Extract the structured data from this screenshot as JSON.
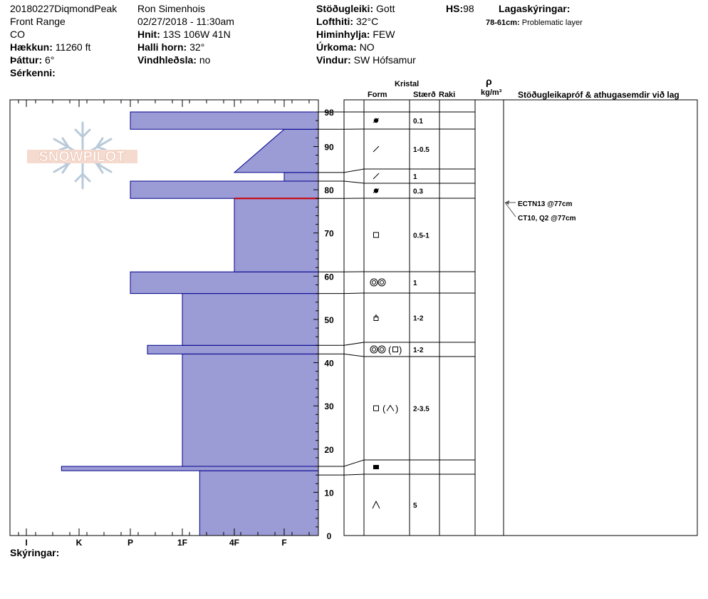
{
  "header": {
    "col1": {
      "site": "20180227DiqmondPeak",
      "range": "Front Range",
      "state": "CO",
      "elevation_label": "Hækkun:",
      "elevation": "11260 ft",
      "aspect_label": "Þáttur:",
      "aspect": "6°",
      "features_label": "Sérkenni:"
    },
    "col2": {
      "observer": "Ron Simenhois",
      "datetime": "02/27/2018 - 11:30am",
      "coords_label": "Hnit:",
      "coords": "13S 106W 41N",
      "slope_label": "Halli horn:",
      "slope": "32°",
      "wind_loading_label": "Vindhleðsla:",
      "wind_loading": "no"
    },
    "col3": {
      "stability_label": "Stöðugleiki:",
      "stability": "Gott",
      "air_temp_label": "Lofthiti:",
      "air_temp": "32°C",
      "sky_label": "Himinhylja:",
      "sky": "FEW",
      "precip_label": "Úrkoma:",
      "precip": "NO",
      "wind_label": "Vindur:",
      "wind": "SW Hófsamur"
    },
    "hs_label": "HS:",
    "hs": "98",
    "layer_notes_label": "Lagaskýringar:",
    "layer_note_range": "78-61cm:",
    "layer_note_text": "Problematic layer"
  },
  "logo_text": "SNOWPILOT",
  "table_headers": {
    "crystal": "Kristal",
    "form": "Form",
    "size": "Stærð",
    "moisture": "Raki",
    "rho": "ρ",
    "density_unit": "kg/m³",
    "stability_tests": "Stöðugleikapróf & athugasemdir við lag"
  },
  "tests": [
    {
      "text": "ECTN13 @77cm",
      "depth": 77
    },
    {
      "text": "CT10, Q2 @77cm",
      "depth": 77
    }
  ],
  "footer": {
    "notes_label": "Skýringar:"
  },
  "colors": {
    "hardness_fill": "#9b9bd6",
    "hardness_stroke": "#00008b",
    "problem_line": "#cc0000"
  },
  "chart_data": {
    "type": "area",
    "title": "",
    "xlabel": "",
    "ylabel": "",
    "x_ticks": [
      "I",
      "K",
      "P",
      "1F",
      "4F",
      "F"
    ],
    "y_ticks": [
      0,
      10,
      20,
      30,
      40,
      50,
      60,
      70,
      80,
      90,
      98
    ],
    "ylim": [
      0,
      98
    ],
    "hardness_profile": [
      {
        "top": 15,
        "bottom": 0,
        "hardness": "1F-"
      },
      {
        "top": 16,
        "bottom": 15,
        "hardness": "K+"
      },
      {
        "top": 42,
        "bottom": 16,
        "hardness": "1F"
      },
      {
        "top": 44,
        "bottom": 42,
        "hardness": "P-"
      },
      {
        "top": 56,
        "bottom": 44,
        "hardness": "1F"
      },
      {
        "top": 61,
        "bottom": 56,
        "hardness": "P"
      },
      {
        "top": 78,
        "bottom": 61,
        "hardness": "4F"
      },
      {
        "top": 82,
        "bottom": 78,
        "hardness": "P"
      },
      {
        "top": 84,
        "bottom": 82,
        "hardness": "F+"
      },
      {
        "top": 94,
        "bottom": 84,
        "hardness_top": "F",
        "hardness_bottom": "4F"
      },
      {
        "top": 98,
        "bottom": 94,
        "hardness": "P"
      }
    ],
    "problem_layer_depth": 78,
    "layers": [
      {
        "top": 98,
        "bottom": 94,
        "form": "precip-particles-icon",
        "size": "0.1"
      },
      {
        "top": 94,
        "bottom": 84,
        "form": "decomposing-icon",
        "size": "1-0.5"
      },
      {
        "top": 84,
        "bottom": 82,
        "form": "decomposing-icon",
        "size": "1"
      },
      {
        "top": 82,
        "bottom": 78,
        "form": "precip-particles-icon",
        "size": "0.3"
      },
      {
        "top": 78,
        "bottom": 61,
        "form": "faceted-icon",
        "size": "0.5-1"
      },
      {
        "top": 61,
        "bottom": 56,
        "form": "melt-forms-icon",
        "size": "1"
      },
      {
        "top": 56,
        "bottom": 44,
        "form": "surface-hoar-icon",
        "size": "1-2"
      },
      {
        "top": 44,
        "bottom": 42,
        "form": "melt-forms-faceted-icon",
        "size": "1-2"
      },
      {
        "top": 42,
        "bottom": 16,
        "form": "faceted-depth-hoar-icon",
        "size": "2-3.5"
      },
      {
        "top": 16,
        "bottom": 14,
        "form": "ice-formation-icon",
        "size": ""
      },
      {
        "top": 14,
        "bottom": 0,
        "form": "depth-hoar-icon",
        "size": "5"
      }
    ]
  }
}
